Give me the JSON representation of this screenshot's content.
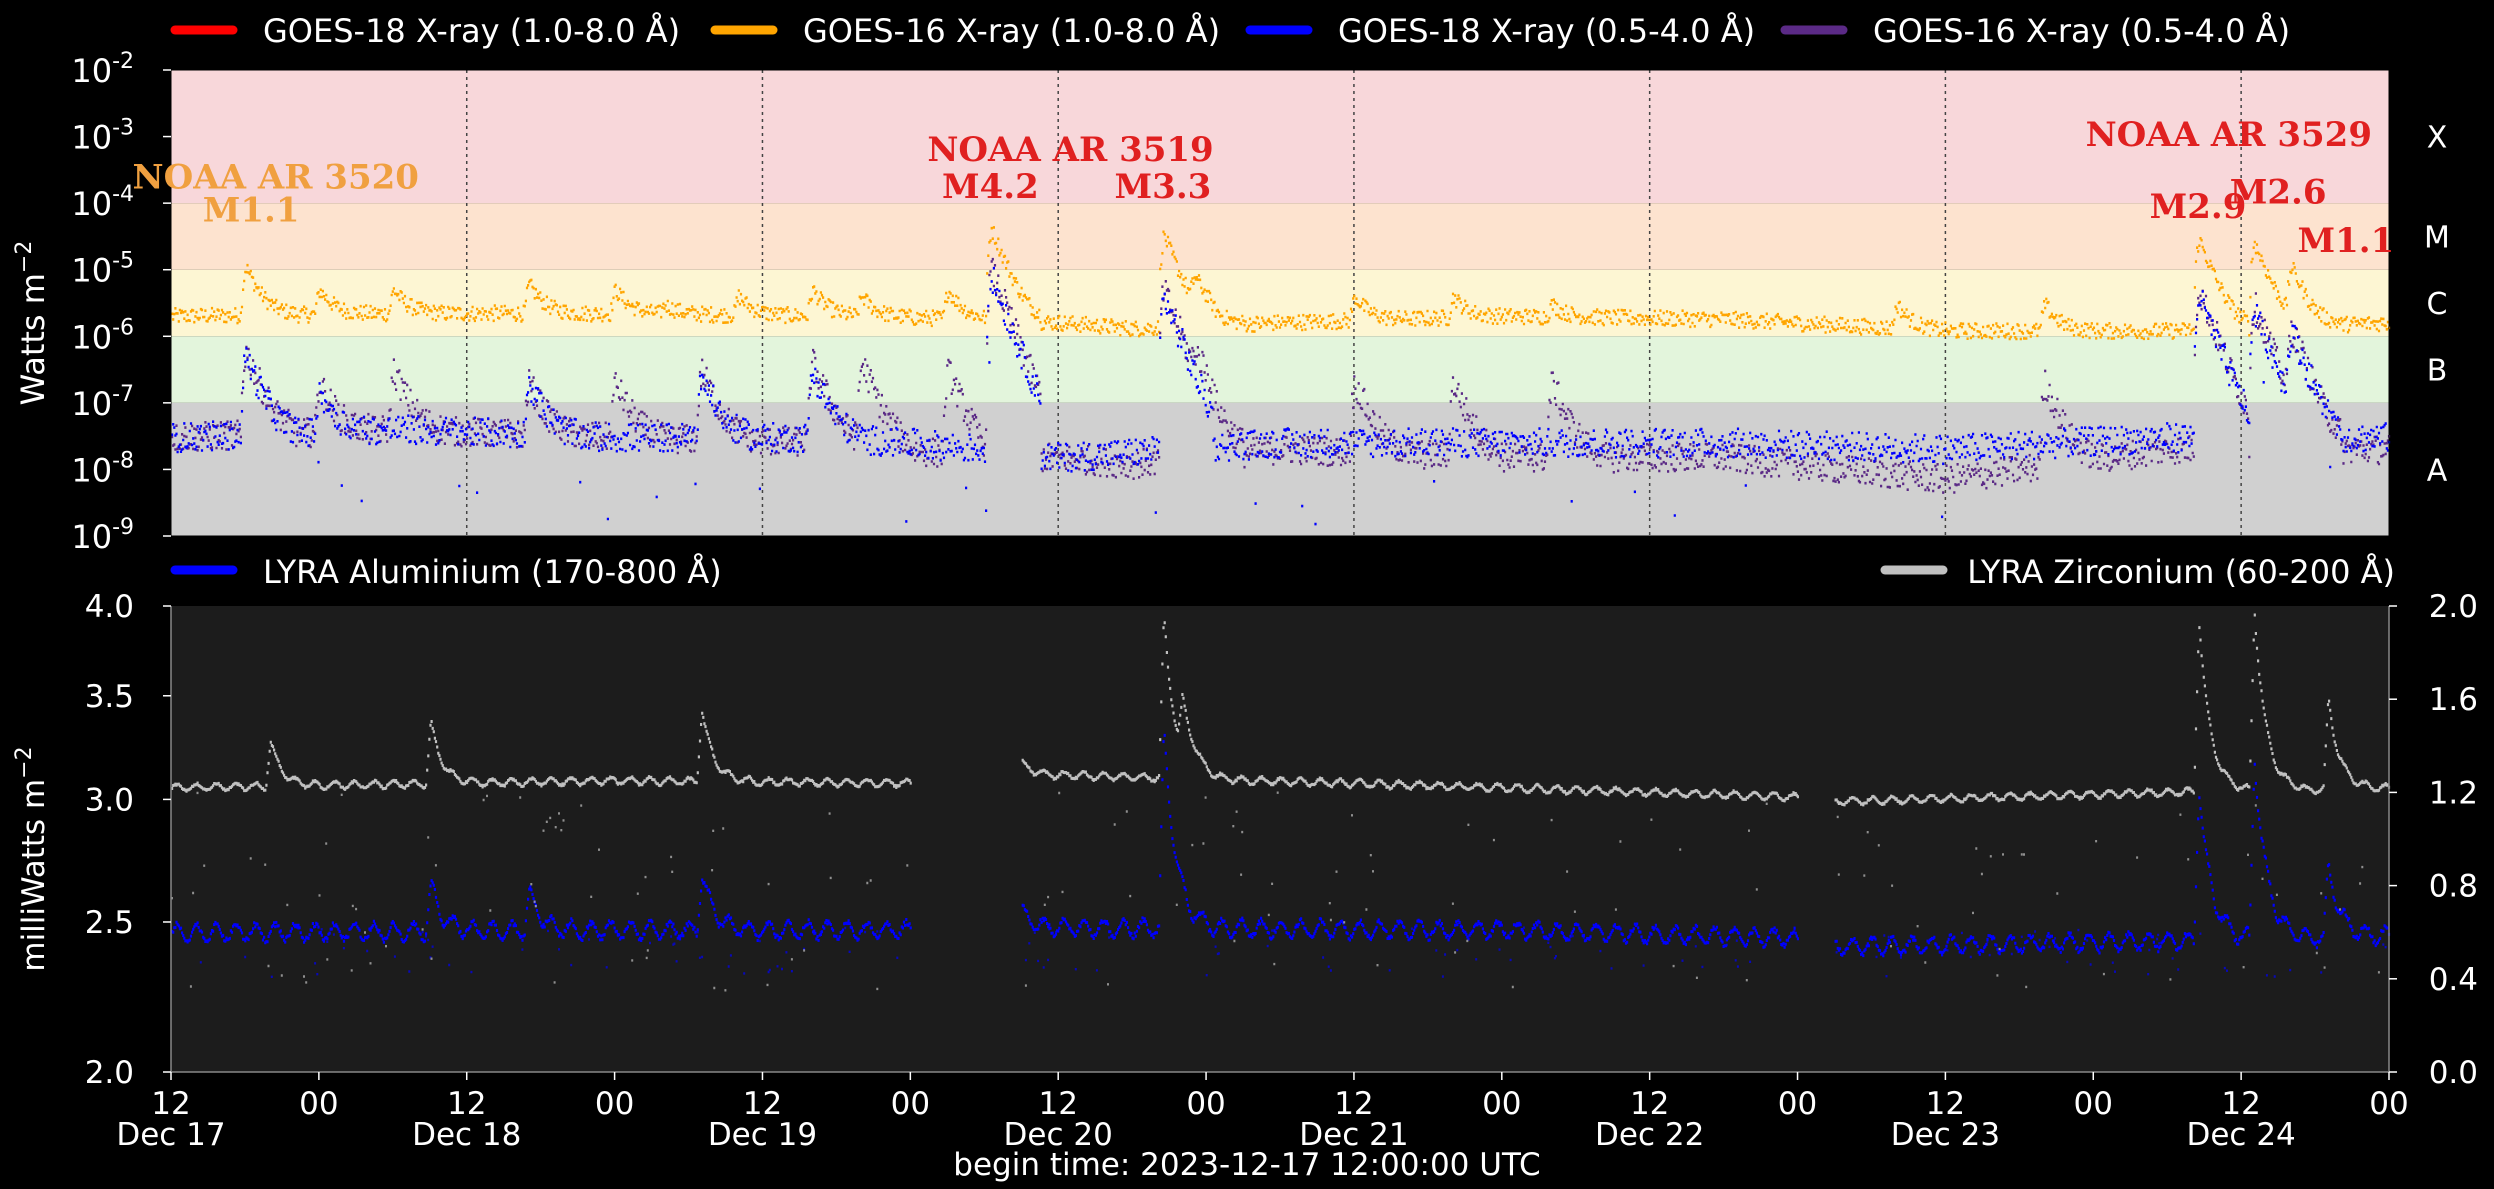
{
  "chart_data": [
    {
      "panel": "top",
      "type": "scatter",
      "ylabel": "Watts m",
      "ylabel_sup": "−2",
      "yscale": "log",
      "ylim": [
        1e-09,
        0.01
      ],
      "ytick_exponents": [
        "-2",
        "-3",
        "-4",
        "-5",
        "-6",
        "-7",
        "-8",
        "-9"
      ],
      "ytick_base": "10",
      "xlim_hours": [
        0,
        180
      ],
      "flare_classes": [
        {
          "label": "X",
          "range": [
            0.0001,
            0.01
          ],
          "color": "#f8d7da"
        },
        {
          "label": "M",
          "range": [
            1e-05,
            0.0001
          ],
          "color": "#fde3cf"
        },
        {
          "label": "C",
          "range": [
            1e-06,
            1e-05
          ],
          "color": "#fdf6d3"
        },
        {
          "label": "B",
          "range": [
            1e-07,
            1e-06
          ],
          "color": "#e3f5dc"
        },
        {
          "label": "A",
          "range": [
            1e-09,
            1e-07
          ],
          "color": "#d0d0d0"
        }
      ],
      "legend": [
        {
          "name": "GOES-18 X-ray (1.0-8.0 Å)",
          "color": "#ff0000"
        },
        {
          "name": "GOES-16 X-ray (1.0-8.0 Å)",
          "color": "#ffa500"
        },
        {
          "name": "GOES-18 X-ray (0.5-4.0 Å)",
          "color": "#0000ff"
        },
        {
          "name": "GOES-16 X-ray (0.5-4.0 Å)",
          "color": "#5b2a86"
        }
      ],
      "annotations": [
        {
          "text": "NOAA AR 3520",
          "x_hour": 8.5,
          "y": 0.00025,
          "color": "#f0a040"
        },
        {
          "text": "M1.1",
          "x_hour": 6.5,
          "y": 8e-05,
          "color": "#f0a040"
        },
        {
          "text": "NOAA AR 3519",
          "x_hour": 73,
          "y": 0.00065,
          "color": "#e02020"
        },
        {
          "text": "M4.2",
          "x_hour": 66.5,
          "y": 0.00018,
          "color": "#e02020"
        },
        {
          "text": "M3.3",
          "x_hour": 80.5,
          "y": 0.00018,
          "color": "#e02020"
        },
        {
          "text": "NOAA AR 3529",
          "x_hour": 167,
          "y": 0.0011,
          "color": "#e02020"
        },
        {
          "text": "M2.9",
          "x_hour": 164.5,
          "y": 9e-05,
          "color": "#e02020"
        },
        {
          "text": "M2.6",
          "x_hour": 171,
          "y": 0.00015,
          "color": "#e02020"
        },
        {
          "text": "M1.1",
          "x_hour": 176.5,
          "y": 2.8e-05,
          "color": "#e02020"
        }
      ],
      "series": [
        {
          "name": "GOES-16 X-ray (1.0-8.0 Å)",
          "color": "#ffa500",
          "baseline": [
            [
              0,
              2e-06
            ],
            [
              18,
              2.2e-06
            ],
            [
              36,
              2.2e-06
            ],
            [
              54,
              2e-06
            ],
            [
              66,
              1.8e-06
            ],
            [
              72,
              1.6e-06
            ],
            [
              78,
              1.3e-06
            ],
            [
              90,
              1.6e-06
            ],
            [
              108,
              2e-06
            ],
            [
              126,
              1.8e-06
            ],
            [
              144,
              1.2e-06
            ],
            [
              162,
              1.2e-06
            ],
            [
              180,
              1.6e-06
            ]
          ],
          "peaks": [
            [
              6,
              1.1e-05
            ],
            [
              12,
              5e-06
            ],
            [
              18,
              5e-06
            ],
            [
              29,
              6e-06
            ],
            [
              36,
              5e-06
            ],
            [
              40,
              3e-06
            ],
            [
              46,
              4e-06
            ],
            [
              52,
              5e-06
            ],
            [
              56,
              4e-06
            ],
            [
              63,
              5e-06
            ],
            [
              66.5,
              4.2e-05
            ],
            [
              80.5,
              3.3e-05
            ],
            [
              83,
              8e-06
            ],
            [
              96,
              4e-06
            ],
            [
              104,
              4e-06
            ],
            [
              112,
              3e-06
            ],
            [
              140,
              3e-06
            ],
            [
              152,
              3e-06
            ],
            [
              164.5,
              2.9e-05
            ],
            [
              169,
              2.6e-05
            ],
            [
              172,
              1.1e-05
            ]
          ]
        },
        {
          "name": "GOES-16 X-ray (0.5-4.0 Å)",
          "color": "#5b2a86",
          "baseline": [
            [
              0,
              3e-08
            ],
            [
              18,
              4e-08
            ],
            [
              36,
              3e-08
            ],
            [
              54,
              2.5e-08
            ],
            [
              66,
              1.5e-08
            ],
            [
              72,
              1.5e-08
            ],
            [
              78,
              1.2e-08
            ],
            [
              90,
              2e-08
            ],
            [
              108,
              1.5e-08
            ],
            [
              126,
              1.5e-08
            ],
            [
              144,
              7e-09
            ],
            [
              162,
              2e-08
            ],
            [
              180,
              2e-08
            ]
          ],
          "peaks": [
            [
              6,
              6e-07
            ],
            [
              12,
              2e-07
            ],
            [
              18,
              3e-07
            ],
            [
              29,
              2e-07
            ],
            [
              36,
              2e-07
            ],
            [
              43,
              3e-07
            ],
            [
              52,
              4e-07
            ],
            [
              56,
              4e-07
            ],
            [
              63,
              3e-07
            ],
            [
              66.5,
              1e-05
            ],
            [
              80.5,
              5e-06
            ],
            [
              83,
              6e-07
            ],
            [
              96,
              2e-07
            ],
            [
              104,
              2e-07
            ],
            [
              112,
              2e-07
            ],
            [
              152,
              2e-07
            ],
            [
              164.5,
              5e-06
            ],
            [
              169,
              3e-06
            ],
            [
              172,
              1.3e-06
            ]
          ]
        },
        {
          "name": "GOES-18 X-ray (0.5-4.0 Å)",
          "color": "#0000ff",
          "baseline": [
            [
              0,
              3e-08
            ],
            [
              18,
              4e-08
            ],
            [
              36,
              3e-08
            ],
            [
              54,
              3e-08
            ],
            [
              66,
              2e-08
            ],
            [
              72,
              1.5e-08
            ],
            [
              78,
              1.8e-08
            ],
            [
              90,
              2.5e-08
            ],
            [
              108,
              2.5e-08
            ],
            [
              126,
              2.5e-08
            ],
            [
              144,
              2e-08
            ],
            [
              162,
              3e-08
            ],
            [
              180,
              3e-08
            ]
          ],
          "peaks": [
            [
              6,
              5e-07
            ],
            [
              12,
              1.5e-07
            ],
            [
              29,
              2e-07
            ],
            [
              43,
              2.5e-07
            ],
            [
              52,
              3e-07
            ],
            [
              66.5,
              8e-06
            ],
            [
              80.5,
              4e-06
            ],
            [
              164.5,
              4e-06
            ],
            [
              169,
              2.5e-06
            ],
            [
              172,
              1.2e-06
            ]
          ]
        }
      ]
    },
    {
      "panel": "bottom",
      "type": "scatter",
      "ylabel": "milliWatts m",
      "ylabel_sup": "−2",
      "yscale": "log",
      "ylim_left": [
        2.0,
        4.0
      ],
      "ylim_right": [
        0.0,
        2.0
      ],
      "yticks_left": [
        "2.0",
        "2.5",
        "3.0",
        "3.5",
        "4.0"
      ],
      "yticks_right": [
        "0.0",
        "0.4",
        "0.8",
        "1.2",
        "1.6",
        "2.0"
      ],
      "xlim_hours": [
        0,
        180
      ],
      "legend": [
        {
          "name": "LYRA Aluminium (170-800 Å)",
          "color": "#0000ff",
          "position": "left"
        },
        {
          "name": "LYRA Zirconium (60-200 Å)",
          "color": "#c0c0c0",
          "position": "right"
        }
      ],
      "gaps_hours": [
        [
          60,
          69
        ],
        [
          132,
          135
        ]
      ],
      "series": [
        {
          "name": "LYRA Aluminium (170-800 Å)",
          "color": "#0000ff",
          "axis": "left",
          "baseline": [
            [
              0,
              2.46
            ],
            [
              36,
              2.47
            ],
            [
              60,
              2.47
            ],
            [
              69,
              2.48
            ],
            [
              108,
              2.47
            ],
            [
              132,
              2.44
            ],
            [
              135,
              2.41
            ],
            [
              162,
              2.43
            ],
            [
              180,
              2.45
            ]
          ],
          "peaks": [
            [
              21,
              2.64
            ],
            [
              29,
              2.62
            ],
            [
              43,
              2.69
            ],
            [
              66.5,
              3.42
            ],
            [
              80.5,
              3.32
            ],
            [
              164.5,
              3.05
            ],
            [
              169,
              3.2
            ],
            [
              175,
              2.72
            ]
          ]
        },
        {
          "name": "LYRA Zirconium (60-200 Å)",
          "color": "#c0c0c0",
          "axis": "right",
          "baseline": [
            [
              0,
              1.22
            ],
            [
              36,
              1.25
            ],
            [
              60,
              1.24
            ],
            [
              69,
              1.28
            ],
            [
              108,
              1.22
            ],
            [
              132,
              1.18
            ],
            [
              135,
              1.16
            ],
            [
              162,
              1.2
            ],
            [
              180,
              1.22
            ]
          ],
          "peaks": [
            [
              8,
              1.42
            ],
            [
              21,
              1.5
            ],
            [
              43,
              1.56
            ],
            [
              60.5,
              1.5
            ],
            [
              66.5,
              1.95
            ],
            [
              80.5,
              1.95
            ],
            [
              82,
              1.6
            ],
            [
              164.5,
              1.95
            ],
            [
              169,
              2.0
            ],
            [
              175,
              1.6
            ]
          ]
        }
      ]
    }
  ],
  "xaxis": {
    "ticks": [
      {
        "hour": 0,
        "top": "12",
        "bottom": "Dec 17"
      },
      {
        "hour": 12,
        "top": "00",
        "bottom": ""
      },
      {
        "hour": 24,
        "top": "12",
        "bottom": "Dec 18"
      },
      {
        "hour": 36,
        "top": "00",
        "bottom": ""
      },
      {
        "hour": 48,
        "top": "12",
        "bottom": "Dec 19"
      },
      {
        "hour": 60,
        "top": "00",
        "bottom": ""
      },
      {
        "hour": 72,
        "top": "12",
        "bottom": "Dec 20"
      },
      {
        "hour": 84,
        "top": "00",
        "bottom": ""
      },
      {
        "hour": 96,
        "top": "12",
        "bottom": "Dec 21"
      },
      {
        "hour": 108,
        "top": "00",
        "bottom": ""
      },
      {
        "hour": 120,
        "top": "12",
        "bottom": "Dec 22"
      },
      {
        "hour": 132,
        "top": "00",
        "bottom": ""
      },
      {
        "hour": 144,
        "top": "12",
        "bottom": "Dec 23"
      },
      {
        "hour": 156,
        "top": "00",
        "bottom": ""
      },
      {
        "hour": 168,
        "top": "12",
        "bottom": "Dec 24"
      },
      {
        "hour": 180,
        "top": "00",
        "bottom": ""
      }
    ],
    "dotted_gridline_hours": [
      24,
      48,
      72,
      96,
      120,
      144,
      168
    ],
    "begin_time": "begin time: 2023-12-17 12:00:00 UTC"
  }
}
